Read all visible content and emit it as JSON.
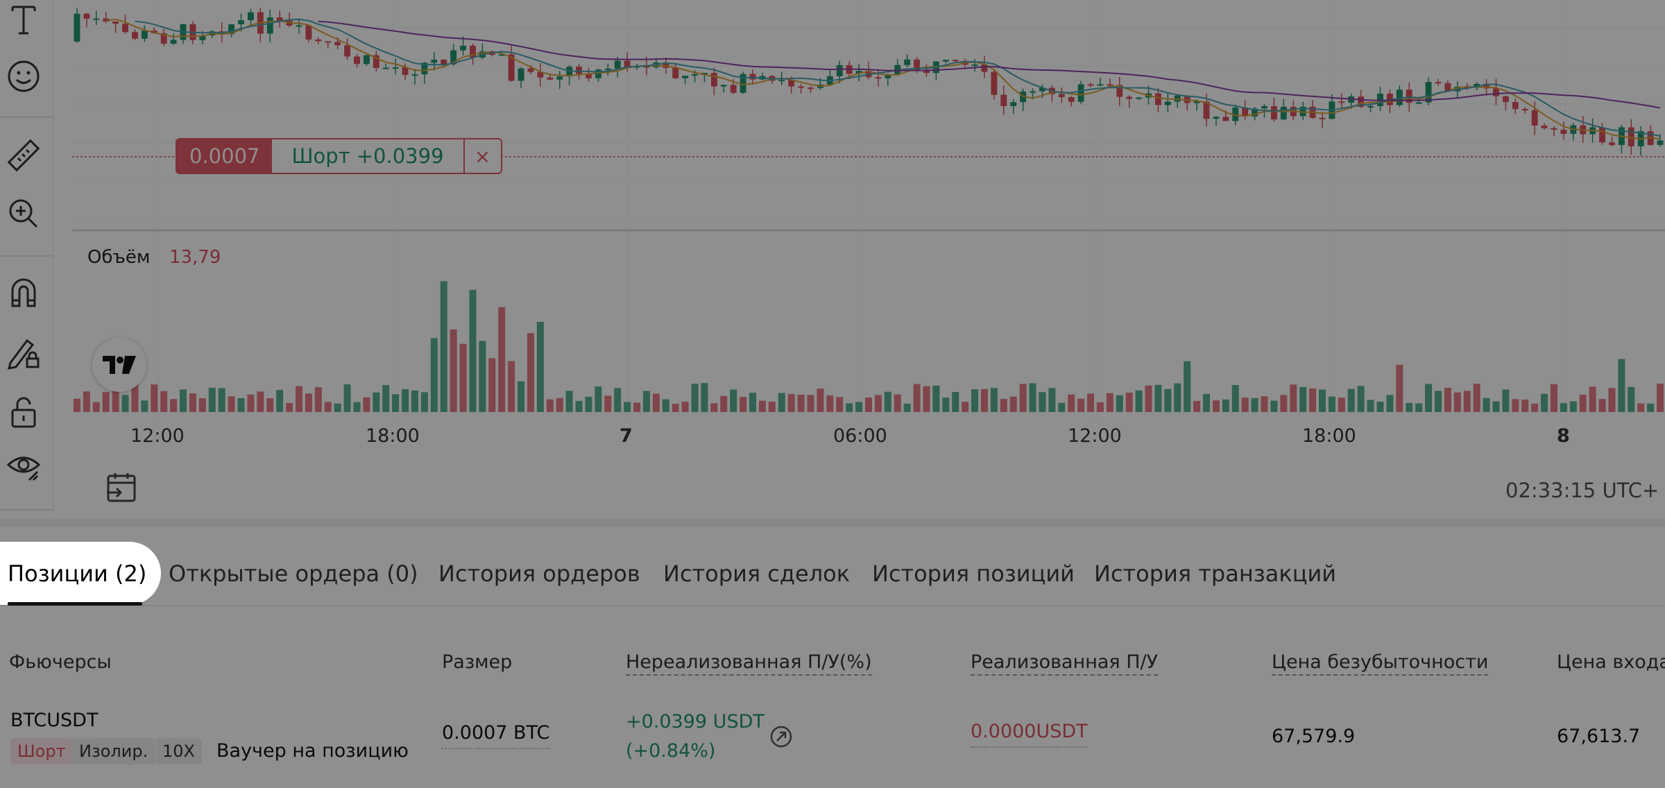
{
  "order_tag": {
    "qty": "0.0007",
    "pnl": "Шорт +0.0399",
    "close": "×"
  },
  "volume": {
    "label": "Объём",
    "value": "13,79"
  },
  "x_axis": [
    "12:00",
    "18:00",
    "7",
    "06:00",
    "12:00",
    "18:00",
    "8"
  ],
  "clock": "02:33:15 UTC+",
  "tabs": [
    "Позиции (2)",
    "Открытые ордера (0)",
    "История ордеров",
    "История сделок",
    "История позиций",
    "История транзакций"
  ],
  "table": {
    "headers": [
      "Фьючерсы",
      "Размер",
      "Нереализованная П/У(%)",
      "Реализованная П/У",
      "Цена безубыточности",
      "Цена входа"
    ],
    "row": {
      "symbol": "BTCUSDT",
      "side_badge": "Шорт",
      "margin_badge": "Изолир.",
      "leverage_badge": "10X",
      "voucher": "Ваучер на позицию",
      "size": "0.0007 BTC",
      "unrealized": "+0.0399 USDT",
      "unrealized_pct": "(+0.84%)",
      "realized": "0.0000USDT",
      "breakeven": "67,579.9",
      "entry": "67,613.7"
    }
  },
  "colors": {
    "up": "#23946f",
    "down": "#d9505d",
    "ma_purple": "#8b3fa6",
    "ma_teal": "#4aa3b5",
    "ma_orange": "#d8a23a"
  },
  "icons": [
    "text-icon",
    "emoji-icon",
    "ruler-icon",
    "zoom-in-icon",
    "magnet-icon",
    "lock-drawing-icon",
    "unlock-icon",
    "eye-icon",
    "calendar-goto-icon",
    "share-icon"
  ]
}
